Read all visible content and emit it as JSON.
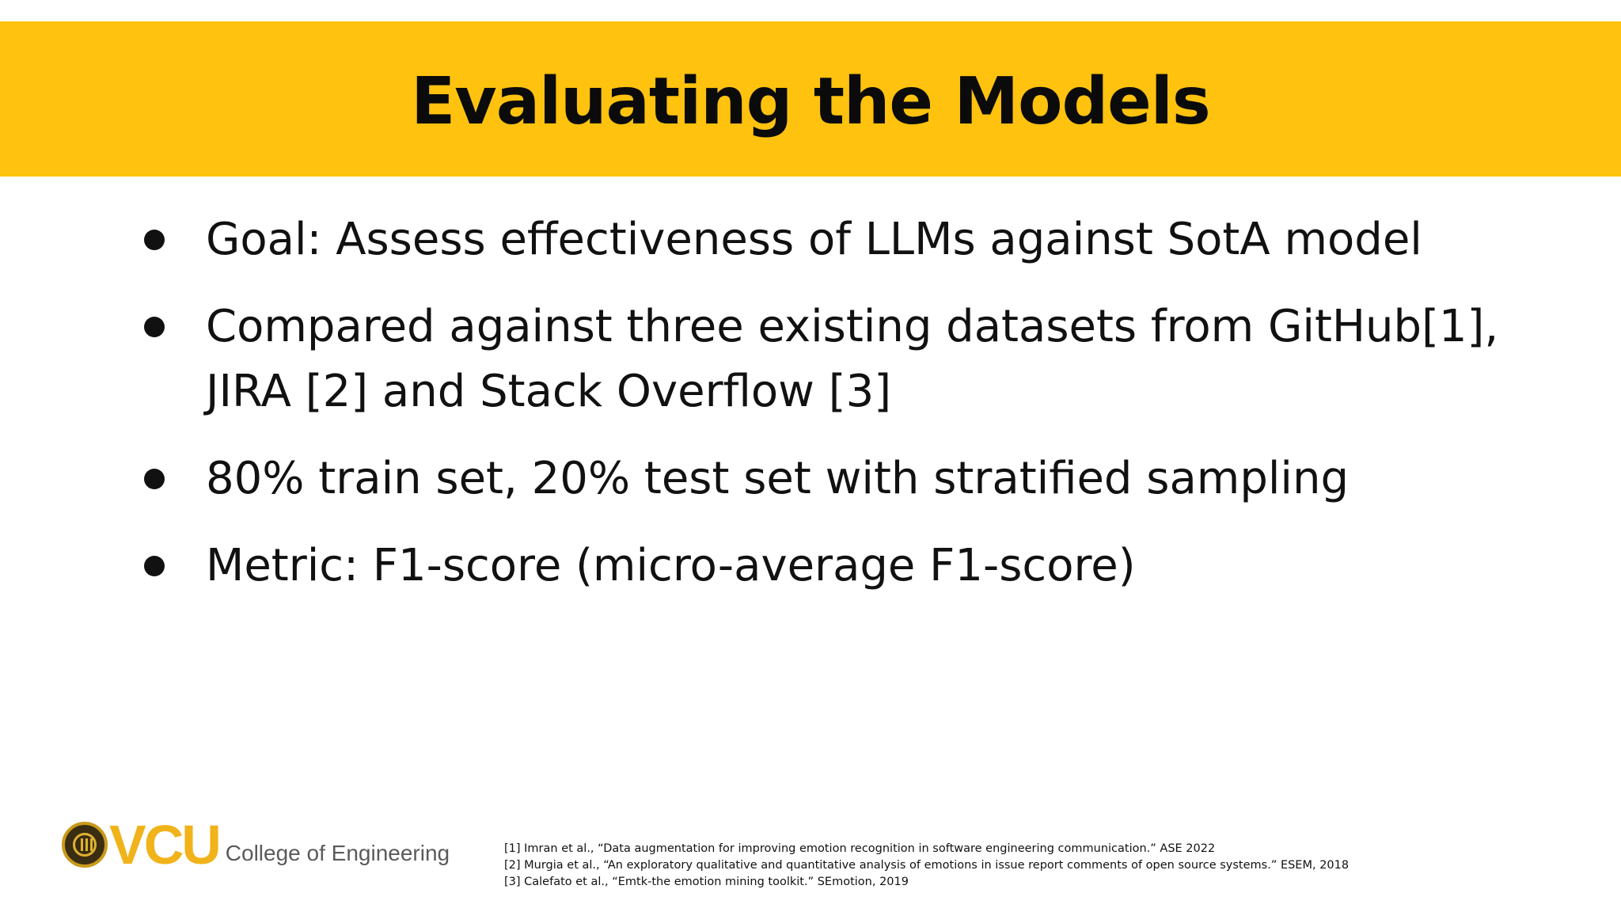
{
  "title": "Evaluating the Models",
  "bullets": [
    "Goal: Assess effectiveness of LLMs against SotA model",
    "Compared against three existing datasets from GitHub[1], JIRA [2] and Stack Overflow [3]",
    "80% train set, 20% test set with stratified sampling",
    "Metric: F1-score (micro-average F1-score)"
  ],
  "logo": {
    "brand": "VCU",
    "subtitle": "College of Engineering",
    "seal_icon": "vcu-seal-icon"
  },
  "references": [
    "[1] Imran et al., “Data augmentation for improving emotion recognition in software engineering communication.” ASE 2022",
    "[2] Murgia et al., “An exploratory qualitative and quantitative analysis of emotions in issue report comments of open source systems.” ESEM, 2018",
    "[3] Calefato et al., “Emtk-the emotion mining toolkit.” SEmotion, 2019"
  ],
  "colors": {
    "title_bar": "#ffc20e",
    "logo_gold": "#f0b31a",
    "text": "#111111"
  }
}
